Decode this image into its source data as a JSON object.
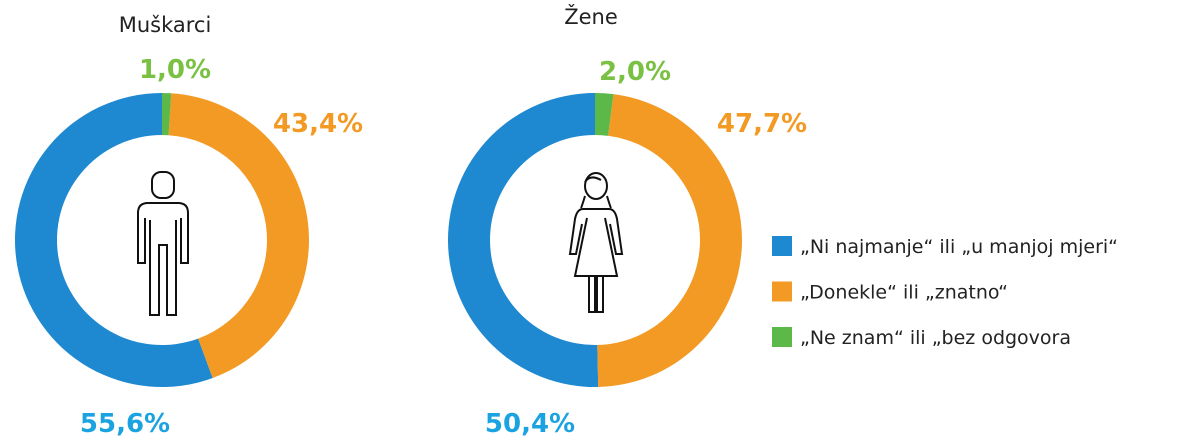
{
  "chart_data": [
    {
      "type": "pie",
      "title": "Muškarci",
      "values": [
        55.6,
        43.4,
        1.0
      ],
      "value_labels": [
        "55,6%",
        "43,4%",
        "1,0%"
      ]
    },
    {
      "type": "pie",
      "title": "Žene",
      "values": [
        50.4,
        47.7,
        2.0
      ],
      "value_labels": [
        "50,4%",
        "47,7%",
        "2,0%"
      ]
    }
  ],
  "legend": {
    "categories": [
      "„Ni najmanje“ ili „u manjoj mjeri“",
      "„Donekle“ ili „znatno“",
      "„Ne znam“ ili „bez odgovora"
    ],
    "colors": [
      "#1e88d0",
      "#f39a24",
      "#5cb848"
    ],
    "label_colors": [
      "#1aa3e0",
      "#f39a24",
      "#7ac143"
    ]
  }
}
